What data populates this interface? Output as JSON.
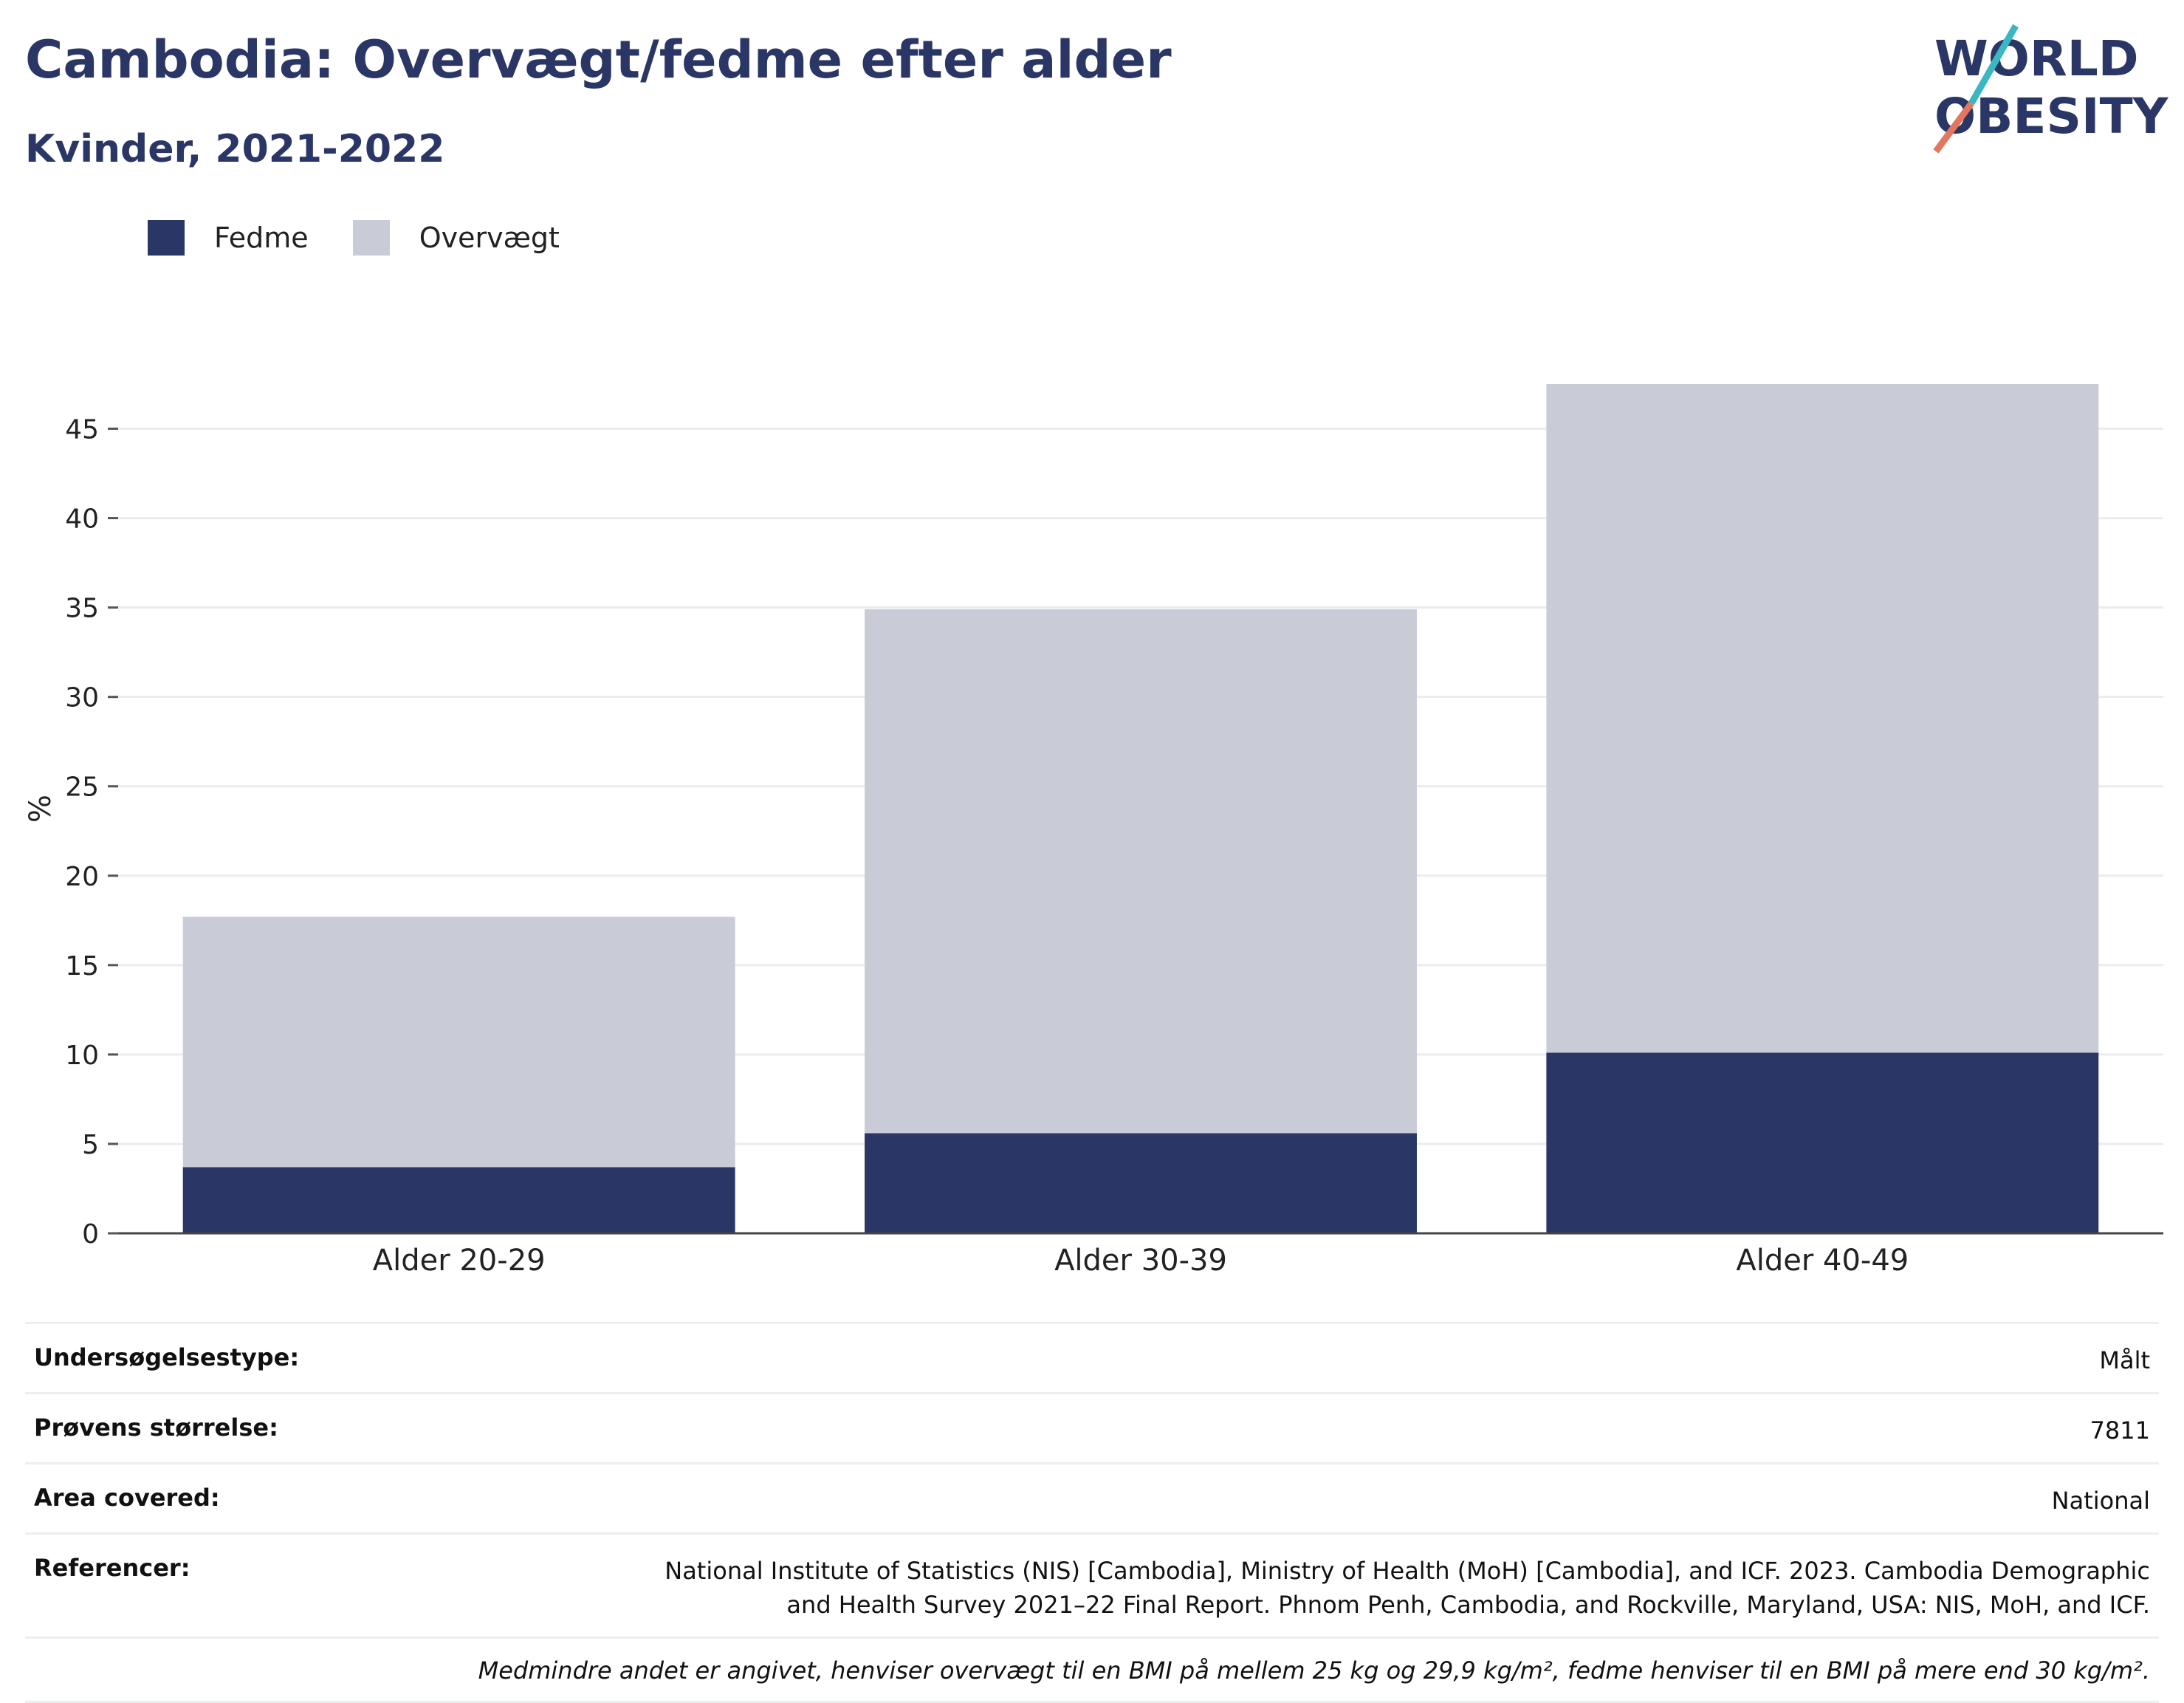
{
  "title": "Cambodia: Overvægt/fedme efter alder",
  "subtitle": "Kvinder, 2021-2022",
  "logo": {
    "line1": "WORLD",
    "line2": "OBESITY"
  },
  "colors": {
    "fedme": "#2a3665",
    "overvaegt": "#c9ccd7",
    "accent_teal": "#3ab7c0",
    "accent_red": "#e2765f",
    "title": "#2a3665"
  },
  "legend": [
    {
      "label": "Fedme",
      "color": "#2a3665"
    },
    {
      "label": "Overvægt",
      "color": "#c9ccd7"
    }
  ],
  "chart_data": {
    "type": "bar",
    "stacked": true,
    "categories": [
      "Alder 20-29",
      "Alder 30-39",
      "Alder 40-49"
    ],
    "series": [
      {
        "name": "Fedme",
        "values": [
          3.7,
          5.6,
          10.1
        ]
      },
      {
        "name": "Overvægt",
        "values": [
          14.0,
          29.3,
          37.5
        ]
      }
    ],
    "ylabel": "%",
    "ylim": [
      0,
      47.5
    ],
    "yticks": [
      0,
      5,
      10,
      15,
      20,
      25,
      30,
      35,
      40,
      45
    ],
    "grid": true,
    "legend_position": "top-left"
  },
  "meta": {
    "rows": [
      {
        "key": "Undersøgelsestype:",
        "value": "Målt"
      },
      {
        "key": "Prøvens størrelse:",
        "value": "7811"
      },
      {
        "key": "Area covered:",
        "value": "National"
      },
      {
        "key": "Referencer:",
        "value": "National Institute of Statistics (NIS) [Cambodia], Ministry of Health (MoH) [Cambodia], and ICF. 2023. Cambodia Demographic and Health Survey 2021–22 Final Report. Phnom Penh, Cambodia, and Rockville, Maryland, USA: NIS, MoH, and ICF."
      }
    ],
    "note": "Medmindre andet er angivet, henviser overvægt til en BMI på mellem 25 kg og 29,9 kg/m², fedme henviser til en BMI på mere end 30 kg/m²."
  }
}
